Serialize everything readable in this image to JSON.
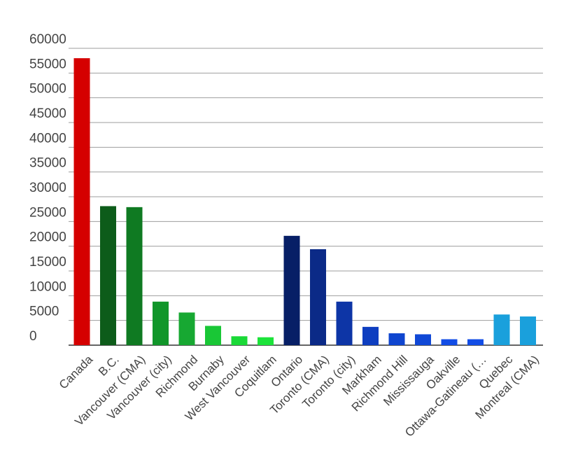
{
  "chart_data": {
    "type": "bar",
    "title": "",
    "xlabel": "",
    "ylabel": "",
    "ylim": [
      0,
      60000
    ],
    "yticks": [
      0,
      5000,
      10000,
      15000,
      20000,
      25000,
      30000,
      35000,
      40000,
      45000,
      50000,
      55000,
      60000
    ],
    "grid": true,
    "legend": "none",
    "categories": [
      "Canada",
      "B.C.",
      "Vancouver (CMA)",
      "Vancouver (city)",
      "Richmond",
      "Burnaby",
      "West Vancouver",
      "Coquitlam",
      "Ontario",
      "Toronto (CMA)",
      "Toronto (city)",
      "Markham",
      "Richmond Hill",
      "Mississauga",
      "Oakville",
      "Ottawa-Gatineau (…",
      "Quebec",
      "Montreal (CMA)"
    ],
    "values": [
      58000,
      28100,
      27900,
      8800,
      6600,
      3900,
      1800,
      1600,
      22100,
      19400,
      8800,
      3700,
      2400,
      2200,
      1200,
      1200,
      6200,
      5800
    ],
    "colors": [
      "#d50000",
      "#0d5c1a",
      "#0f7a22",
      "#11962a",
      "#17a832",
      "#19c736",
      "#1ad937",
      "#1ce33a",
      "#071f66",
      "#0b2a87",
      "#0d35a6",
      "#0e3ec0",
      "#0f45cf",
      "#1048d6",
      "#124de6",
      "#124de6",
      "#1aa0dc",
      "#1aa0dc"
    ]
  }
}
